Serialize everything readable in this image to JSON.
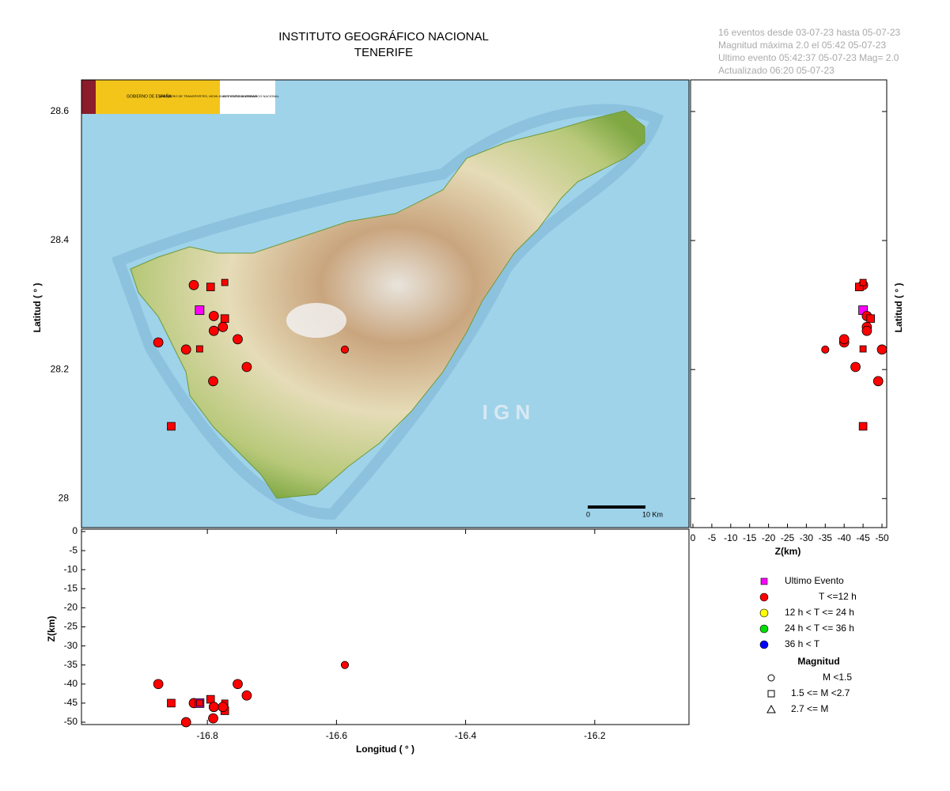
{
  "header": {
    "title": "INSTITUTO GEOGRÁFICO NACIONAL",
    "subtitle": "TENERIFE",
    "info": [
      "16 eventos desde 03-07-23 hasta 05-07-23",
      "Magnitud máxima 2.0 el 05:42 05-07-23",
      "Ultimo evento   05:42:37 05-07-23  Mag= 2.0",
      "Actualizado   06:20  05-07-23"
    ]
  },
  "logos": [
    "GOBIERNO DE ESPAÑA",
    "MINISTERIO DE TRANSPORTES, MOVILIDAD Y AGENDA URBANA",
    "INSTITUTO GEOGRÁFICO NACIONAL"
  ],
  "map": {
    "watermark": "I G N",
    "scale_bar": [
      "0",
      "10 Km"
    ],
    "lon_lim": [
      -16.995,
      -16.054
    ],
    "lat_lim": [
      27.955,
      28.649
    ],
    "depth_lim": [
      0,
      -50
    ],
    "lon_ticks": [
      -16.8,
      -16.6,
      -16.4,
      -16.2
    ],
    "lat_ticks": [
      28,
      28.2,
      28.4,
      28.6
    ],
    "depth_ticks": [
      0,
      -5,
      -10,
      -15,
      -20,
      -25,
      -30,
      -35,
      -40,
      -45,
      -50
    ],
    "lon_label": "Longitud ( ° )",
    "lat_label": "Latitud ( ° )",
    "depth_label": "Z(km)"
  },
  "events": [
    {
      "lon": -16.821,
      "lat": 28.331,
      "depth": -45,
      "magnitude": 1.2,
      "shape": "circle",
      "color": "#ff0000"
    },
    {
      "lon": -16.795,
      "lat": 28.328,
      "depth": -44,
      "magnitude": 1.8,
      "shape": "square",
      "color": "#ff0000"
    },
    {
      "lon": -16.773,
      "lat": 28.335,
      "depth": -45,
      "magnitude": 1.5,
      "shape": "square",
      "color": "#ff0000"
    },
    {
      "lon": -16.812,
      "lat": 28.292,
      "depth": -45,
      "magnitude": 2.0,
      "shape": "square",
      "color": "#ff00ff"
    },
    {
      "lon": -16.79,
      "lat": 28.283,
      "depth": -46,
      "magnitude": 1.2,
      "shape": "circle",
      "color": "#ff0000"
    },
    {
      "lon": -16.773,
      "lat": 28.279,
      "depth": -47,
      "magnitude": 1.8,
      "shape": "square",
      "color": "#ff0000"
    },
    {
      "lon": -16.776,
      "lat": 28.266,
      "depth": -46,
      "magnitude": 1.2,
      "shape": "circle",
      "color": "#ff0000"
    },
    {
      "lon": -16.79,
      "lat": 28.26,
      "depth": -46,
      "magnitude": 1.2,
      "shape": "circle",
      "color": "#ff0000"
    },
    {
      "lon": -16.876,
      "lat": 28.242,
      "depth": -40,
      "magnitude": 1.2,
      "shape": "circle",
      "color": "#ff0000"
    },
    {
      "lon": -16.833,
      "lat": 28.231,
      "depth": -50,
      "magnitude": 1.2,
      "shape": "circle",
      "color": "#ff0000"
    },
    {
      "lon": -16.812,
      "lat": 28.232,
      "depth": -45,
      "magnitude": 1.5,
      "shape": "square",
      "color": "#ff0000"
    },
    {
      "lon": -16.753,
      "lat": 28.247,
      "depth": -40,
      "magnitude": 1.2,
      "shape": "circle",
      "color": "#ff0000"
    },
    {
      "lon": -16.739,
      "lat": 28.204,
      "depth": -43,
      "magnitude": 1.2,
      "shape": "circle",
      "color": "#ff0000"
    },
    {
      "lon": -16.587,
      "lat": 28.231,
      "depth": -35,
      "magnitude": 0.8,
      "shape": "circle",
      "color": "#ff0000"
    },
    {
      "lon": -16.791,
      "lat": 28.182,
      "depth": -49,
      "magnitude": 1.2,
      "shape": "circle",
      "color": "#ff0000"
    },
    {
      "lon": -16.856,
      "lat": 28.112,
      "depth": -45,
      "magnitude": 1.8,
      "shape": "square",
      "color": "#ff0000"
    }
  ],
  "legend": {
    "time": [
      {
        "label": "Ultimo Evento",
        "color": "#ff00ff",
        "shape": "square"
      },
      {
        "label": "T <=12 h",
        "color": "#ff0000",
        "shape": "circle"
      },
      {
        "label": "12 h  < T <= 24 h",
        "color": "#ffff00",
        "shape": "circle"
      },
      {
        "label": "24 h  < T <= 36 h",
        "color": "#00dd00",
        "shape": "circle"
      },
      {
        "label": "36 h <  T",
        "color": "#0000ff",
        "shape": "circle"
      }
    ],
    "magnitude_title": "Magnitud",
    "magnitude": [
      {
        "label": "M <1.5",
        "shape": "circle"
      },
      {
        "label": "1.5 <= M <2.7",
        "shape": "square"
      },
      {
        "label": "2.7 <= M",
        "shape": "triangle"
      }
    ]
  }
}
